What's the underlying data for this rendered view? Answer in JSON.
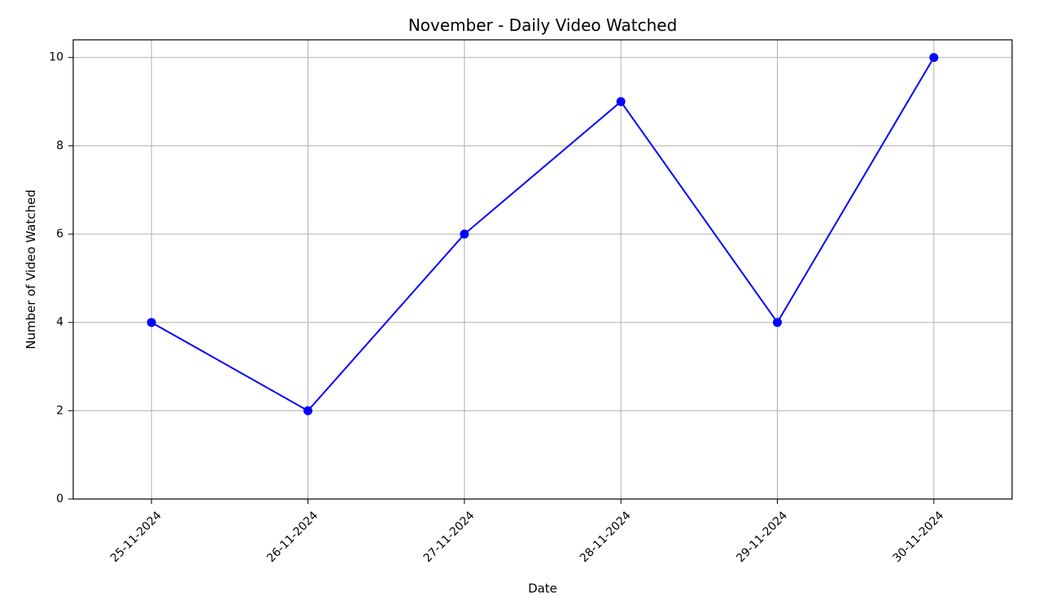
{
  "chart_data": {
    "type": "line",
    "title": "November - Daily Video Watched",
    "xlabel": "Date",
    "ylabel": "Number of Video Watched",
    "categories": [
      "25-11-2024",
      "26-11-2024",
      "27-11-2024",
      "28-11-2024",
      "29-11-2024",
      "30-11-2024"
    ],
    "series": [
      {
        "values": [
          4,
          2,
          6,
          9,
          4,
          10
        ],
        "color": "#0000ff",
        "marker": "circle"
      }
    ],
    "ylim": [
      0,
      10.4
    ],
    "yticks": [
      0,
      2,
      4,
      6,
      8,
      10
    ],
    "grid": true,
    "x_tick_rotation": "45deg"
  }
}
